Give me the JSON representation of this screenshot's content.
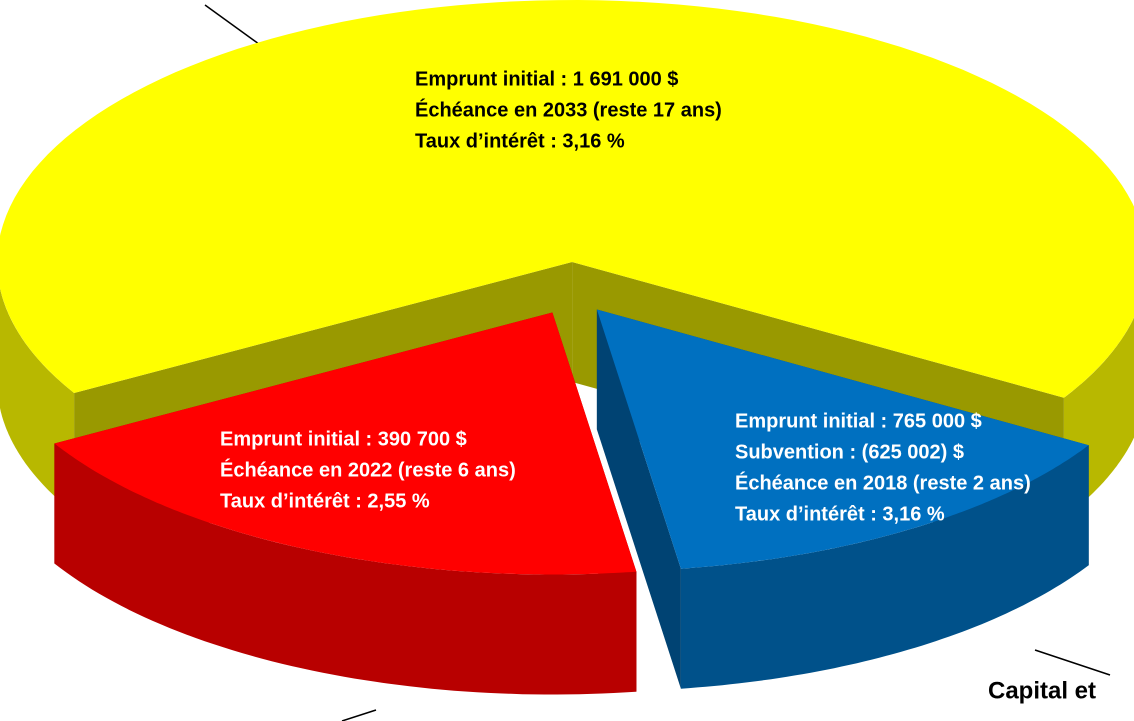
{
  "chart_data": {
    "type": "pie",
    "values": [
      67,
      14,
      19
    ],
    "colors": [
      "#ffff00",
      "#0070c0",
      "#ff0000"
    ],
    "labels": [
      [
        "Emprunt initial : 1 691 000 $",
        "Échéance en 2033 (reste 17 ans)",
        "Taux d’intérêt : 3,16 %"
      ],
      [
        "Emprunt initial : 765 000 $",
        "Subvention : (625 002) $",
        "Échéance en 2018 (reste 2 ans)",
        "Taux d’intérêt : 3,16 %"
      ],
      [
        "Emprunt initial : 390 700 $",
        "Échéance en 2022 (reste 6 ans)",
        "Taux d’intérêt : 2,55 %"
      ]
    ],
    "annotations": [
      "Capital et"
    ]
  }
}
